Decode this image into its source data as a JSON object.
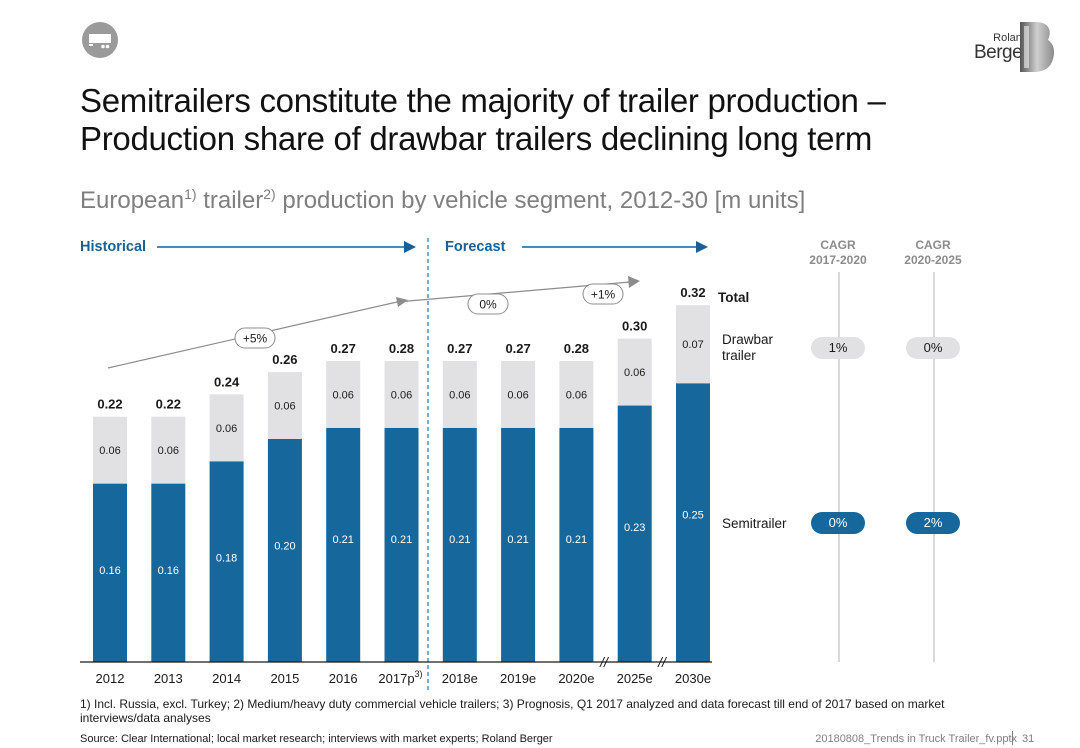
{
  "slide": {
    "title": "Semitrailers constitute the majority of trailer production – Production share of drawbar trailers declining long term",
    "subtitle_parts": [
      "European",
      "1)",
      " trailer",
      "2)",
      " production by vehicle segment, 2012-30 [m units]"
    ],
    "historical_label": "Historical",
    "forecast_label": "Forecast",
    "cagr_headers": [
      {
        "line1": "CAGR",
        "line2": "2017-2020"
      },
      {
        "line1": "CAGR",
        "line2": "2020-2025"
      }
    ],
    "cagr_values": {
      "drawbar": [
        "1%",
        "0%"
      ],
      "semitrailer": [
        "0%",
        "2%"
      ]
    },
    "total_label": "Total",
    "drawbar_label_line1": "Drawbar",
    "drawbar_label_line2": "trailer",
    "semitrailer_label": "Semitrailer",
    "growth_labels": [
      "+5%",
      "0%",
      "+1%"
    ],
    "axis_break_symbol": "//",
    "footnotes": "1) Incl. Russia, excl. Turkey; 2) Medium/heavy duty commercial vehicle trailers; 3) Prognosis, Q1 2017 analyzed and data forecast till end of 2017 based on market interviews/data analyses",
    "source": "Source: Clear International; local market research; interviews with market experts; Roland Berger",
    "file_ref": "20180808_Trends in Truck Trailer_fv.pptx",
    "page_number": "31",
    "logo_line1": "Roland",
    "logo_line2": "Berger",
    "icon": "trailer-icon"
  },
  "chart_data": {
    "type": "bar",
    "stacked": true,
    "categories": [
      "2012",
      "2013",
      "2014",
      "2015",
      "2016",
      "2017p",
      "2018e",
      "2019e",
      "2020e",
      "2025e",
      "2030e"
    ],
    "category_superscripts": [
      "",
      "",
      "",
      "",
      "",
      "3)",
      "",
      "",
      "",
      "",
      ""
    ],
    "series": [
      {
        "name": "Semitrailer",
        "values": [
          0.16,
          0.16,
          0.18,
          0.2,
          0.21,
          0.21,
          0.21,
          0.21,
          0.21,
          0.23,
          0.25
        ],
        "color": "#16679b"
      },
      {
        "name": "Drawbar trailer",
        "values": [
          0.06,
          0.06,
          0.06,
          0.06,
          0.06,
          0.06,
          0.06,
          0.06,
          0.06,
          0.06,
          0.07
        ],
        "color": "#e1e1e3"
      }
    ],
    "totals": [
      0.22,
      0.22,
      0.24,
      0.26,
      0.27,
      0.28,
      0.27,
      0.27,
      0.28,
      0.3,
      0.32
    ],
    "colors": {
      "semitrailer": "#16679b",
      "drawbar": "#e1e1e3",
      "accent": "#1a5f96",
      "arrow": "#8c8c8c"
    }
  }
}
